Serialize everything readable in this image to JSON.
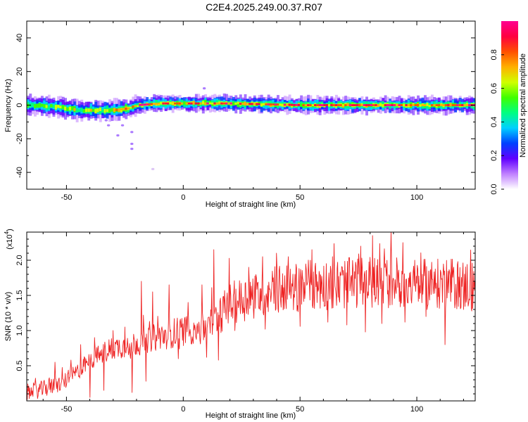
{
  "title": "C2E4.2025.249.00.37.R07",
  "chart_data": [
    {
      "type": "heatmap",
      "xlabel": "Height of straight line (km)",
      "ylabel": "Frequency (Hz)",
      "xlim": [
        -67,
        125
      ],
      "ylim": [
        -50,
        50
      ],
      "xticks": [
        -50,
        0,
        50,
        100
      ],
      "yticks": [
        -40,
        -20,
        0,
        20,
        40
      ],
      "grid": false,
      "colorbar": {
        "label": "Normalized spectral amplitude",
        "range": [
          0,
          1
        ],
        "ticks": [
          "0.0",
          "0.2",
          "0.4",
          "0.6",
          "0.8"
        ],
        "colors": [
          "#ffffff",
          "#c080ff",
          "#6000ff",
          "#0040ff",
          "#00d0ff",
          "#00ff80",
          "#40ff00",
          "#d0ff00",
          "#ffb000",
          "#ff5000",
          "#ff0040",
          "#ff0090"
        ]
      },
      "ridge_center_hz": [
        [
          -67,
          0
        ],
        [
          -55,
          -1
        ],
        [
          -45,
          -3
        ],
        [
          -38,
          -3
        ],
        [
          -30,
          -3
        ],
        [
          -24,
          -2
        ],
        [
          -20,
          0
        ],
        [
          -10,
          1
        ],
        [
          0,
          1
        ],
        [
          20,
          1
        ],
        [
          50,
          0
        ],
        [
          80,
          0
        ],
        [
          100,
          0
        ],
        [
          125,
          0
        ]
      ],
      "scatter_outliers": [
        [
          -33,
          -9
        ],
        [
          -32,
          -12
        ],
        [
          -28,
          -18
        ],
        [
          -26,
          -12
        ],
        [
          -22,
          -16
        ],
        [
          -22,
          -23
        ],
        [
          -22,
          -26
        ],
        [
          -13,
          -38
        ],
        [
          9,
          10
        ]
      ]
    },
    {
      "type": "line",
      "xlabel": "Height of straight line (km)",
      "ylabel": "SNR (10 * v/v)",
      "scale_label": "(x10",
      "scale_exp": "4",
      "scale_close": ")",
      "xlim": [
        -67,
        125
      ],
      "ylim": [
        0,
        2.4
      ],
      "xticks": [
        -50,
        0,
        50,
        100
      ],
      "yticks": [
        "0.5",
        "1.0",
        "1.5",
        "2.0"
      ],
      "ytick_values": [
        0.5,
        1.0,
        1.5,
        2.0
      ],
      "grid": false,
      "series": [
        {
          "color": "#ee2222",
          "trend": [
            [
              -67,
              0.12
            ],
            [
              -60,
              0.17
            ],
            [
              -52,
              0.25
            ],
            [
              -45,
              0.42
            ],
            [
              -38,
              0.62
            ],
            [
              -30,
              0.75
            ],
            [
              -20,
              0.82
            ],
            [
              -10,
              0.92
            ],
            [
              0,
              1.0
            ],
            [
              10,
              1.05
            ],
            [
              15,
              1.2
            ],
            [
              20,
              1.38
            ],
            [
              30,
              1.5
            ],
            [
              40,
              1.58
            ],
            [
              50,
              1.62
            ],
            [
              60,
              1.65
            ],
            [
              75,
              1.68
            ],
            [
              90,
              1.7
            ],
            [
              100,
              1.66
            ],
            [
              110,
              1.66
            ],
            [
              125,
              1.65
            ]
          ],
          "spikes": [
            [
              -55,
              0.55
            ],
            [
              -48,
              0.58
            ],
            [
              -44,
              0.8
            ],
            [
              -38,
              0.9
            ],
            [
              -30,
              1.0
            ],
            [
              -25,
              1.05
            ],
            [
              -18,
              1.7
            ],
            [
              -13,
              1.55
            ],
            [
              -6,
              1.65
            ],
            [
              2,
              1.4
            ],
            [
              8,
              1.65
            ],
            [
              13,
              2.15
            ],
            [
              22,
              1.75
            ],
            [
              28,
              1.9
            ],
            [
              34,
              2.05
            ],
            [
              40,
              2.1
            ],
            [
              45,
              2.05
            ],
            [
              55,
              2.15
            ],
            [
              64,
              2.05
            ],
            [
              70,
              2.2
            ],
            [
              76,
              2.2
            ],
            [
              81,
              2.35
            ],
            [
              89,
              2.4
            ],
            [
              94,
              2.25
            ],
            [
              104,
              2.1
            ],
            [
              112,
              2.35
            ],
            [
              120,
              2.05
            ]
          ],
          "dips": [
            [
              -40,
              0.05
            ],
            [
              -34,
              0.15
            ],
            [
              -22,
              0.12
            ],
            [
              -16,
              0.28
            ],
            [
              -2,
              0.6
            ],
            [
              10,
              0.62
            ],
            [
              15,
              0.58
            ],
            [
              22,
              1.0
            ],
            [
              35,
              1.02
            ],
            [
              50,
              1.06
            ],
            [
              62,
              1.12
            ],
            [
              70,
              1.08
            ],
            [
              78,
              0.98
            ],
            [
              85,
              1.1
            ],
            [
              95,
              1.12
            ],
            [
              104,
              1.2
            ],
            [
              112,
              0.8
            ],
            [
              120,
              1.3
            ]
          ]
        }
      ]
    }
  ]
}
